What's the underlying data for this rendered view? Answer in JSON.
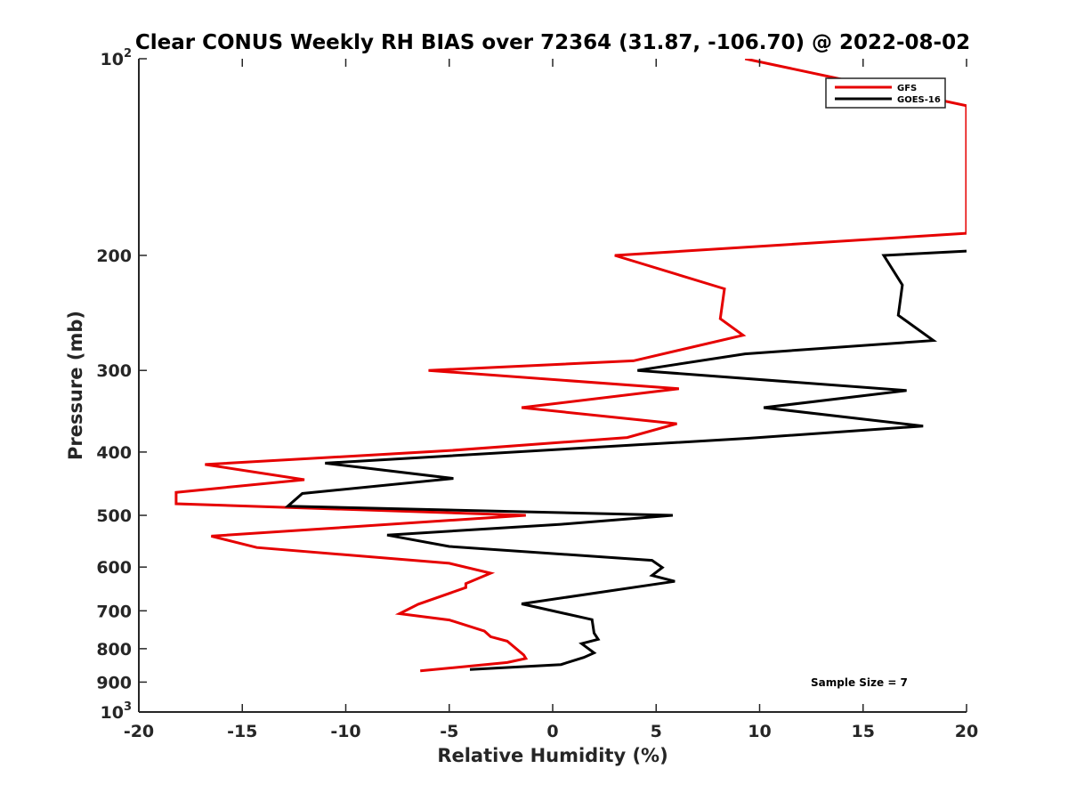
{
  "chart_data": {
    "type": "line",
    "title": "Clear CONUS Weekly RH BIAS over 72364 (31.87, -106.70) @ 2022-08-02",
    "xlabel": "Relative Humidity (%)",
    "ylabel": "Pressure (mb)",
    "xlim": [
      -20,
      20
    ],
    "ylim": [
      100,
      1000
    ],
    "y_scale": "log",
    "y_reversed": true,
    "grid": false,
    "legend_position": "top-right",
    "x_ticks": [
      -20,
      -15,
      -10,
      -5,
      0,
      5,
      10,
      15,
      20
    ],
    "x_tick_labels": [
      "-20",
      "-15",
      "-10",
      "-5",
      "0",
      "5",
      "10",
      "15",
      "20"
    ],
    "y_ticks": [
      100,
      200,
      300,
      400,
      500,
      600,
      700,
      800,
      900,
      1000
    ],
    "y_tick_labels": [
      {
        "base": "10",
        "exp": "2"
      },
      {
        "base": "200",
        "exp": ""
      },
      {
        "base": "300",
        "exp": ""
      },
      {
        "base": "400",
        "exp": ""
      },
      {
        "base": "500",
        "exp": ""
      },
      {
        "base": "600",
        "exp": ""
      },
      {
        "base": "700",
        "exp": ""
      },
      {
        "base": "800",
        "exp": ""
      },
      {
        "base": "900",
        "exp": ""
      },
      {
        "base": "10",
        "exp": "3"
      }
    ],
    "annotation": "Sample Size = 7",
    "series": [
      {
        "name": "GFS",
        "color": "#e60000",
        "points": [
          [
            9.3,
            100
          ],
          [
            20,
            118
          ],
          [
            20,
            185
          ],
          [
            3.0,
            200
          ],
          [
            8.3,
            225
          ],
          [
            8.1,
            250
          ],
          [
            9.2,
            265
          ],
          [
            3.9,
            290
          ],
          [
            -6.0,
            300
          ],
          [
            6.1,
            320
          ],
          [
            -1.5,
            342
          ],
          [
            6.0,
            362
          ],
          [
            3.6,
            380
          ],
          [
            -5.0,
            398
          ],
          [
            -16.8,
            418
          ],
          [
            -12.0,
            441
          ],
          [
            -18.2,
            461
          ],
          [
            -18.2,
            480
          ],
          [
            -1.3,
            500
          ],
          [
            -16.5,
            538
          ],
          [
            -14.3,
            560
          ],
          [
            -5.0,
            592
          ],
          [
            -3.0,
            613
          ],
          [
            -4.2,
            636
          ],
          [
            -4.2,
            645
          ],
          [
            -6.5,
            684
          ],
          [
            -7.4,
            707
          ],
          [
            -5.0,
            723
          ],
          [
            -3.3,
            752
          ],
          [
            -3.0,
            767
          ],
          [
            -2.2,
            779
          ],
          [
            -1.4,
            818
          ],
          [
            -1.3,
            828
          ],
          [
            -2.2,
            840
          ],
          [
            -6.4,
            865
          ]
        ]
      },
      {
        "name": "GOES-16",
        "color": "#000000",
        "points": [
          [
            20,
            197
          ],
          [
            16.0,
            200
          ],
          [
            16.9,
            222
          ],
          [
            16.7,
            247
          ],
          [
            18.4,
            270
          ],
          [
            9.3,
            283
          ],
          [
            4.1,
            300
          ],
          [
            17.1,
            322
          ],
          [
            10.2,
            342
          ],
          [
            17.9,
            365
          ],
          [
            9.5,
            381
          ],
          [
            -11.0,
            416
          ],
          [
            -4.8,
            439
          ],
          [
            -12.1,
            463
          ],
          [
            -12.8,
            484
          ],
          [
            5.8,
            500
          ],
          [
            0.4,
            516
          ],
          [
            -8.0,
            536
          ],
          [
            -5.0,
            558
          ],
          [
            4.8,
            586
          ],
          [
            5.3,
            601
          ],
          [
            4.8,
            618
          ],
          [
            5.9,
            631
          ],
          [
            -1.5,
            683
          ],
          [
            1.9,
            722
          ],
          [
            2.0,
            757
          ],
          [
            2.2,
            774
          ],
          [
            1.4,
            786
          ],
          [
            2.0,
            812
          ],
          [
            1.5,
            825
          ],
          [
            0.4,
            846
          ],
          [
            -4.0,
            861
          ]
        ]
      }
    ]
  }
}
